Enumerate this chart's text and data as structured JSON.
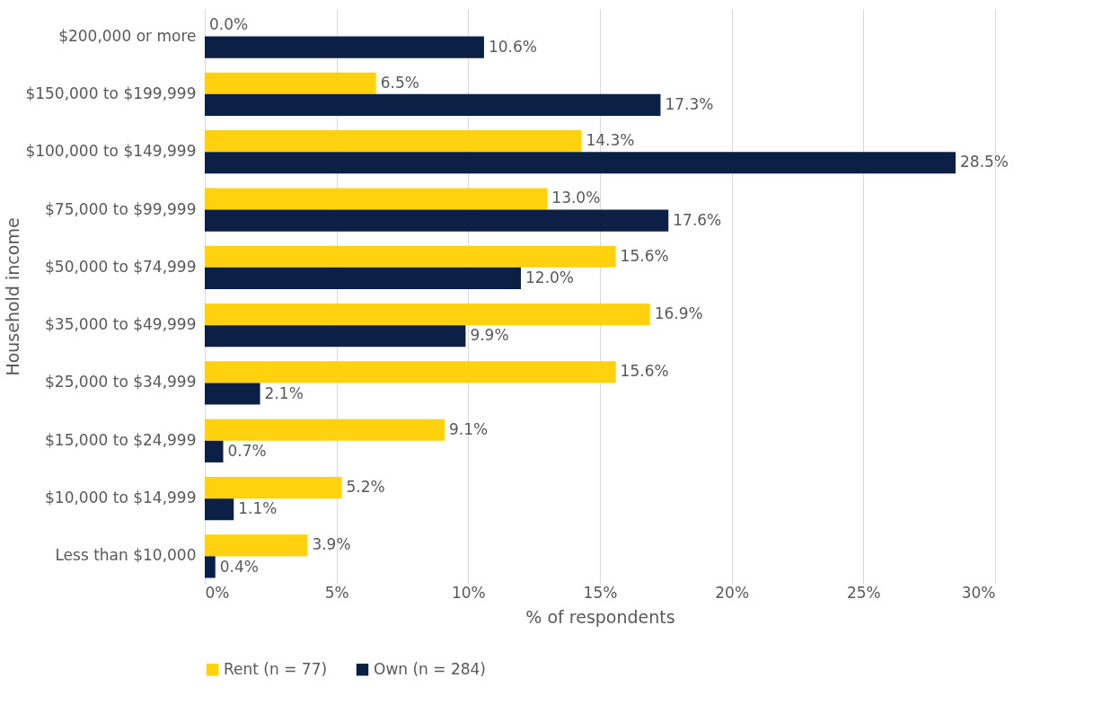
{
  "chart_data": {
    "type": "bar",
    "orientation": "horizontal",
    "xlabel": "% of respondents",
    "ylabel": "Household income",
    "categories": [
      "$200,000 or more",
      "$150,000 to $199,999",
      "$100,000 to $149,999",
      "$75,000 to $99,999",
      "$50,000 to $74,999",
      "$35,000 to $49,999",
      "$25,000 to $34,999",
      "$15,000 to $24,999",
      "$10,000 to $14,999",
      "Less than $10,000"
    ],
    "series": [
      {
        "name": "Rent (n = 77)",
        "color": "#ffd10f",
        "values": [
          0.0,
          6.5,
          14.3,
          13.0,
          15.6,
          16.9,
          15.6,
          9.1,
          5.2,
          3.9
        ],
        "value_labels": [
          "0.0%",
          "6.5%",
          "14.3%",
          "13.0%",
          "15.6%",
          "16.9%",
          "15.6%",
          "9.1%",
          "5.2%",
          "3.9%"
        ]
      },
      {
        "name": "Own (n = 284)",
        "color": "#0c1f44",
        "values": [
          10.6,
          17.3,
          28.5,
          17.6,
          12.0,
          9.9,
          2.1,
          0.7,
          1.1,
          0.4
        ],
        "value_labels": [
          "10.6%",
          "17.3%",
          "28.5%",
          "17.6%",
          "12.0%",
          "9.9%",
          "2.1%",
          "0.7%",
          "1.1%",
          "0.4%"
        ]
      }
    ],
    "xlim": [
      0,
      30
    ],
    "xticks": [
      {
        "value": 0,
        "label": "0%"
      },
      {
        "value": 5,
        "label": "5%"
      },
      {
        "value": 10,
        "label": "10%"
      },
      {
        "value": 15,
        "label": "15%"
      },
      {
        "value": 20,
        "label": "20%"
      },
      {
        "value": 25,
        "label": "25%"
      },
      {
        "value": 30,
        "label": "30%"
      }
    ],
    "grid": "x",
    "legend": "bottom"
  }
}
